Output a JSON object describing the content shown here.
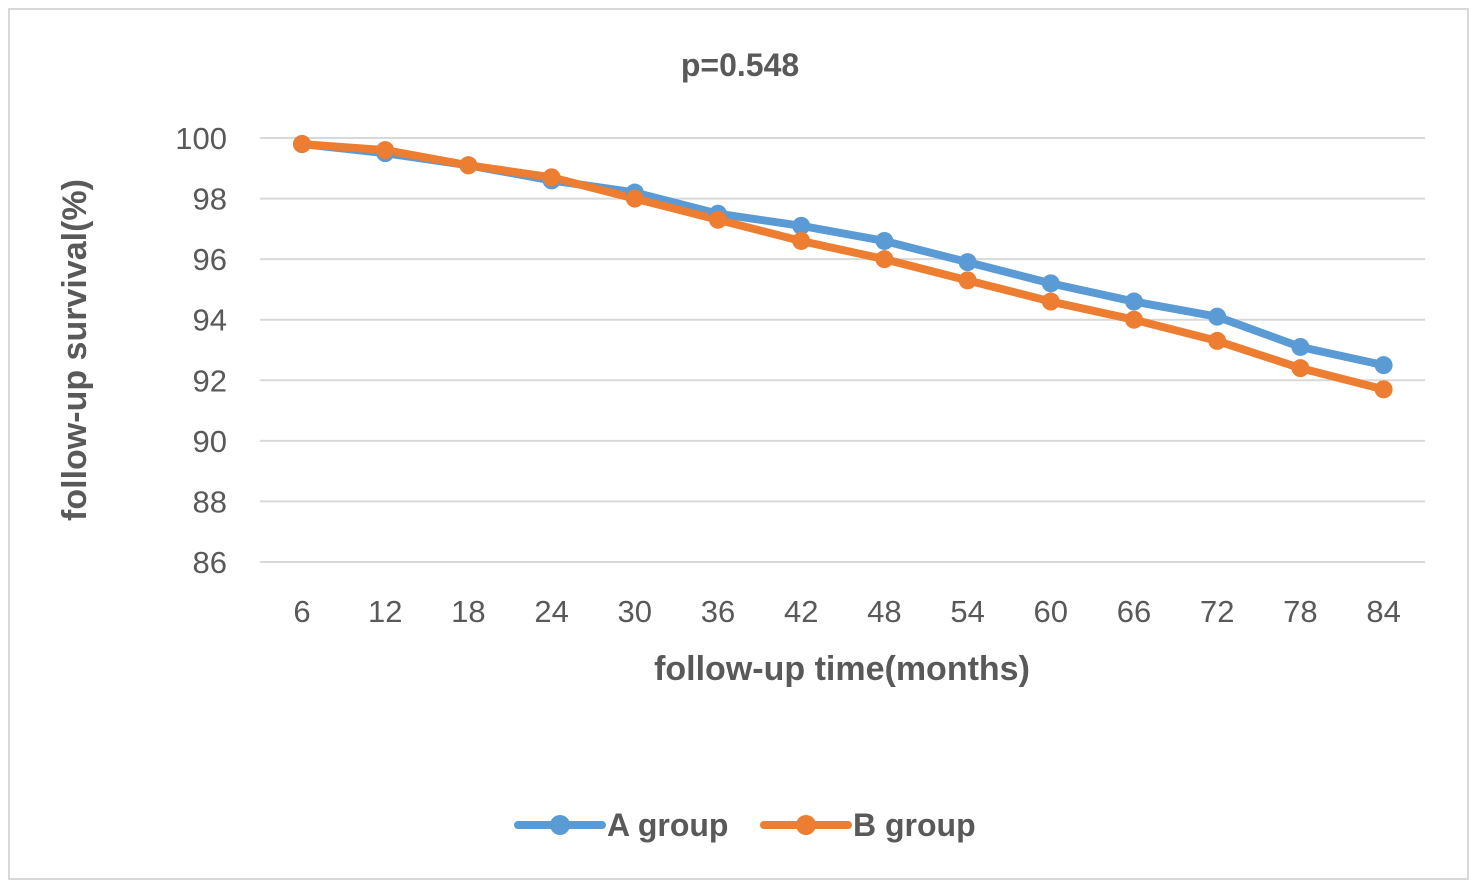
{
  "chart_data": {
    "type": "line",
    "title": "p=0.548",
    "xlabel": "follow-up time(months)",
    "ylabel": "follow-up survival(%)",
    "x": [
      6,
      12,
      18,
      24,
      30,
      36,
      42,
      48,
      54,
      60,
      66,
      72,
      78,
      84
    ],
    "x_tick_labels": [
      "6",
      "12",
      "18",
      "24",
      "30",
      "36",
      "42",
      "48",
      "54",
      "60",
      "66",
      "72",
      "78",
      "84"
    ],
    "ylim": [
      86,
      100
    ],
    "y_ticks": [
      86,
      88,
      90,
      92,
      94,
      96,
      98,
      100
    ],
    "y_tick_labels": [
      "86",
      "88",
      "90",
      "92",
      "94",
      "96",
      "98",
      "100"
    ],
    "grid": true,
    "legend_position": "bottom",
    "series": [
      {
        "name": "A group",
        "color": "#5b9bd5",
        "values": [
          99.8,
          99.5,
          99.1,
          98.6,
          98.2,
          97.5,
          97.1,
          96.6,
          95.9,
          95.2,
          94.6,
          94.1,
          93.1,
          92.5
        ]
      },
      {
        "name": "B group",
        "color": "#ed7d31",
        "values": [
          99.8,
          99.6,
          99.1,
          98.7,
          98.0,
          97.3,
          96.6,
          96.0,
          95.3,
          94.6,
          94.0,
          93.3,
          92.4,
          91.7
        ]
      }
    ]
  }
}
